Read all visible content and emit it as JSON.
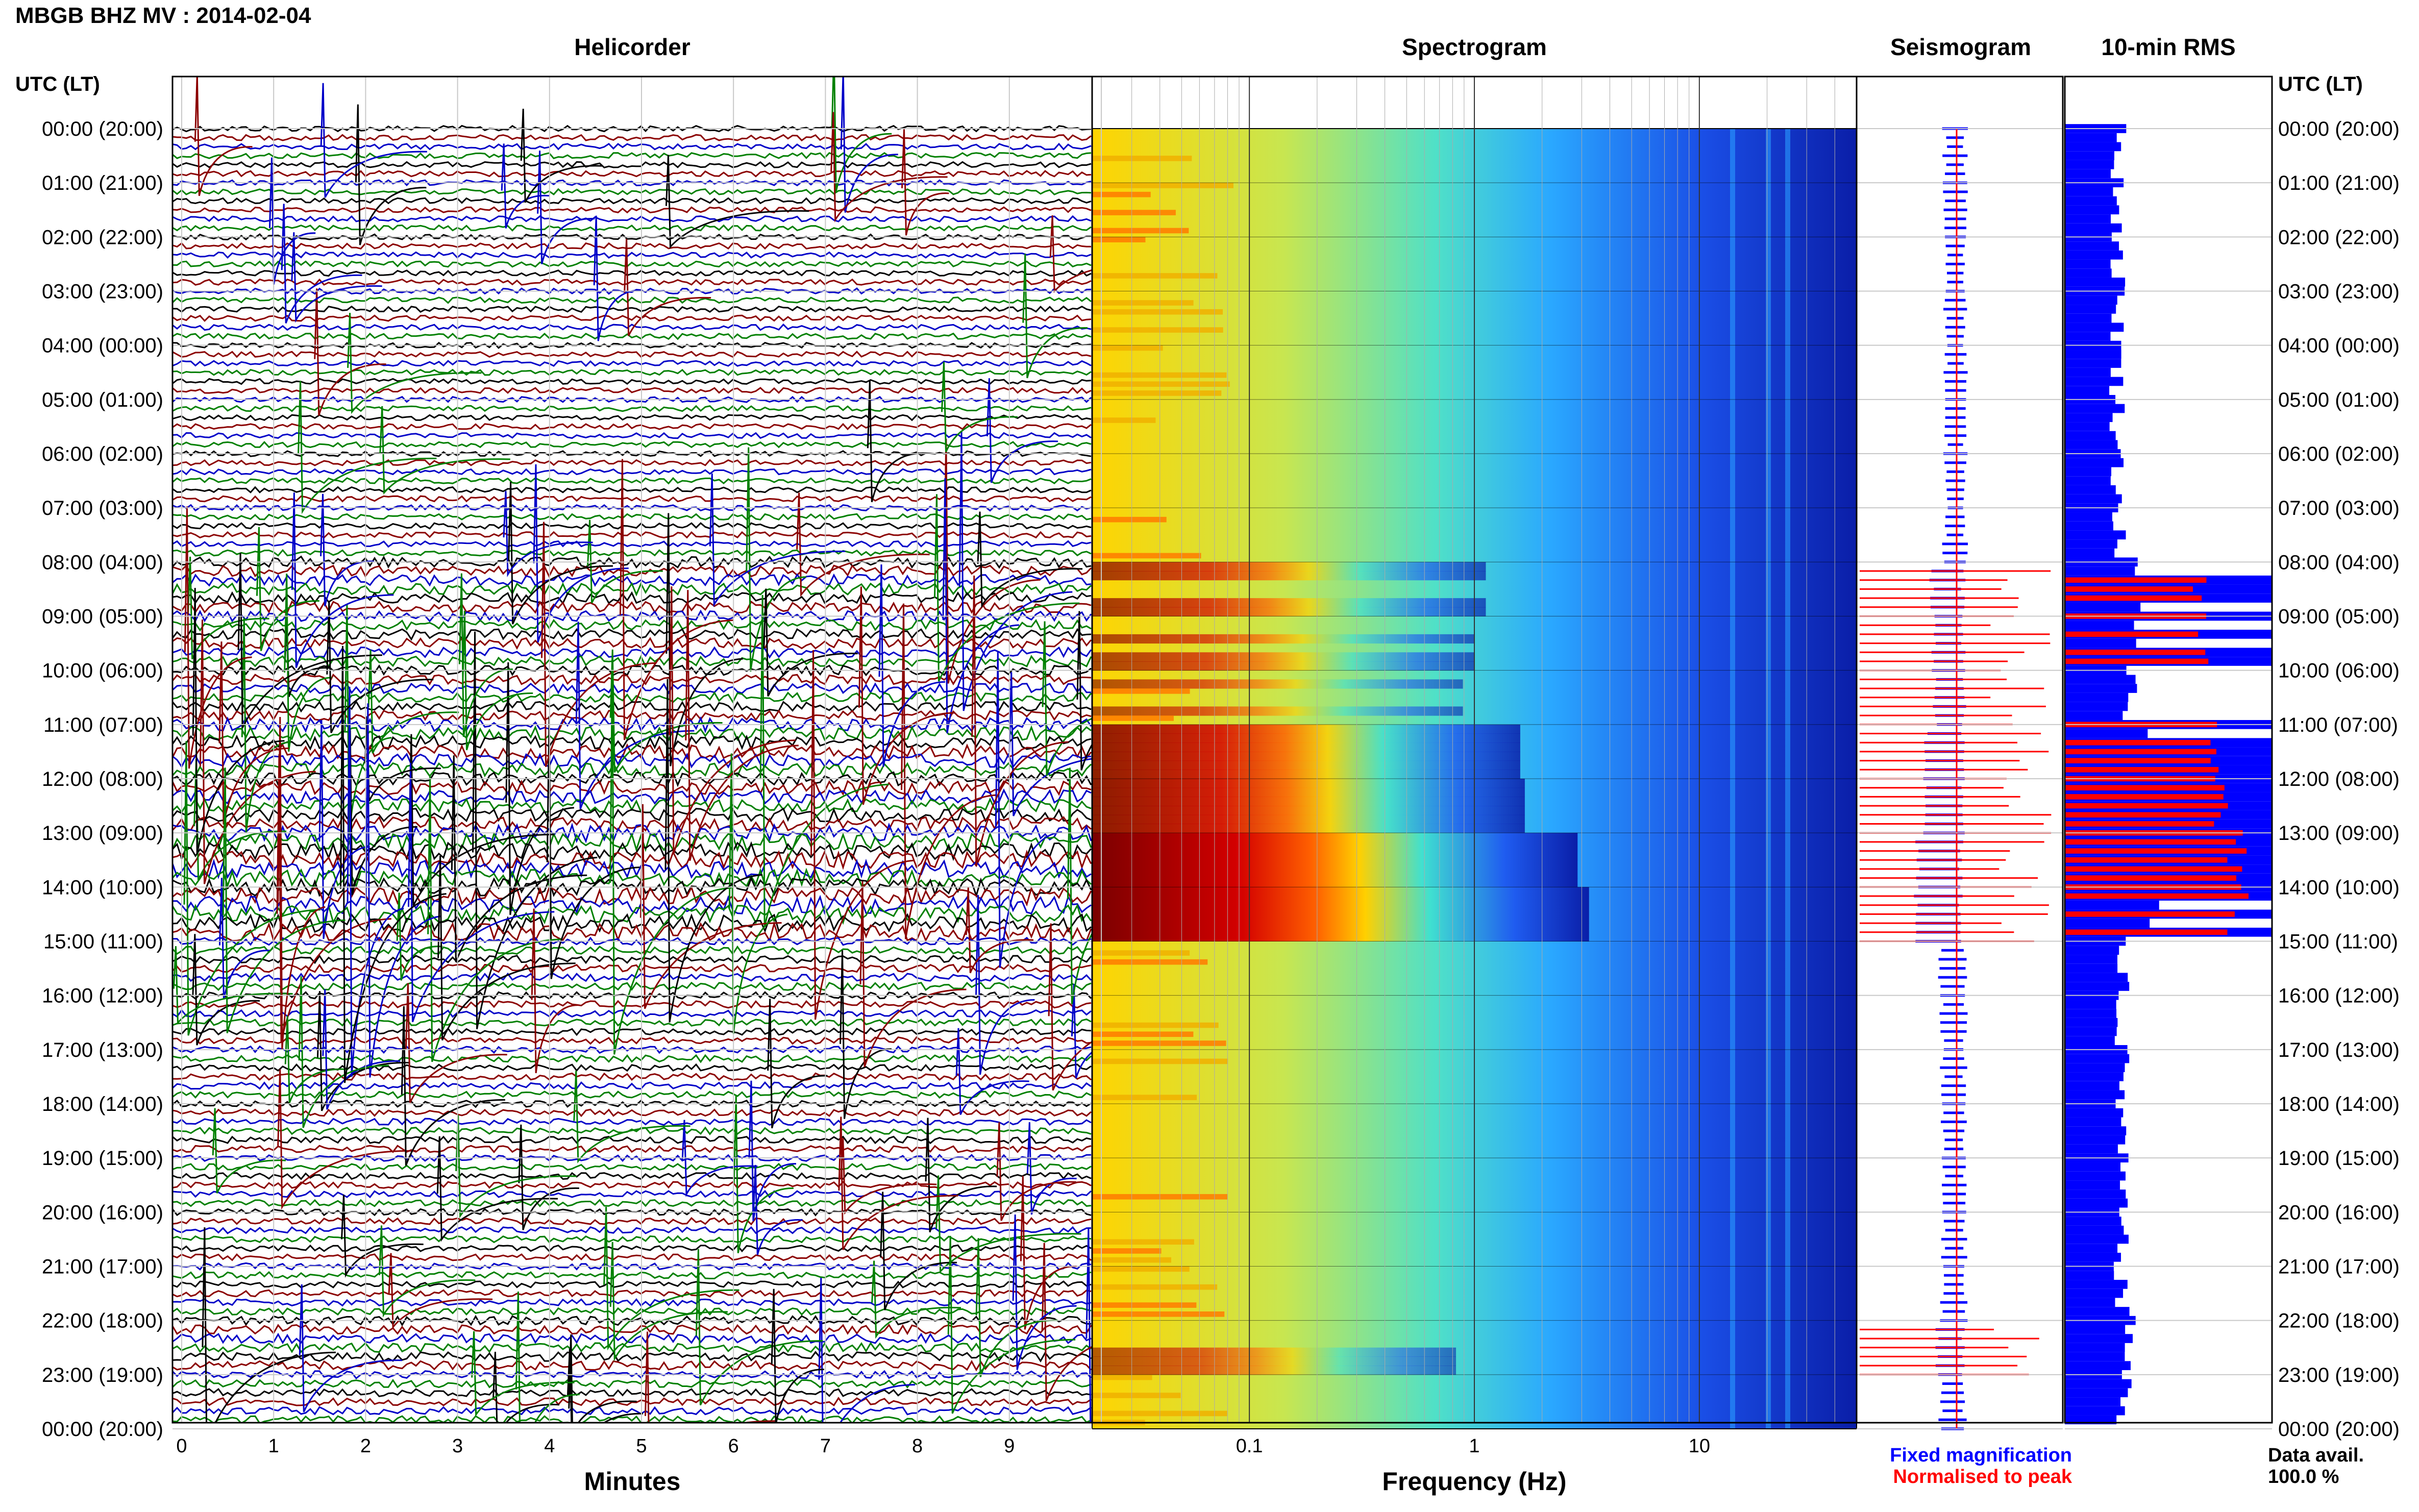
{
  "chart_data": {
    "type": "helicorder",
    "title": "MBGB BHZ MV : 2014-02-04",
    "time_axis": {
      "header": "UTC (LT)",
      "ticks": [
        "00:00 (20:00)",
        "01:00 (21:00)",
        "02:00 (22:00)",
        "03:00 (23:00)",
        "04:00 (00:00)",
        "05:00 (01:00)",
        "06:00 (02:00)",
        "07:00 (03:00)",
        "08:00 (04:00)",
        "09:00 (05:00)",
        "10:00 (06:00)",
        "11:00 (07:00)",
        "12:00 (08:00)",
        "13:00 (09:00)",
        "14:00 (10:00)",
        "15:00 (11:00)",
        "16:00 (12:00)",
        "17:00 (13:00)",
        "18:00 (14:00)",
        "19:00 (15:00)",
        "20:00 (16:00)",
        "21:00 (17:00)",
        "22:00 (18:00)",
        "23:00 (19:00)",
        "00:00 (20:00)"
      ]
    },
    "panels": {
      "helicorder": {
        "title": "Helicorder",
        "xlabel": "Minutes",
        "xticks": [
          "0",
          "1",
          "2",
          "3",
          "4",
          "5",
          "6",
          "7",
          "8",
          "9"
        ],
        "xlim": [
          0,
          10
        ],
        "trace_colors": [
          "#000000",
          "#8b0000",
          "#0000c8",
          "#008000"
        ],
        "lines_per_hour": 6
      },
      "spectrogram": {
        "title": "Spectrogram",
        "xlabel": "Frequency (Hz)",
        "xscale": "log",
        "xticks": [
          "0.1",
          "1",
          "10"
        ],
        "xlim": [
          0.02,
          50
        ],
        "colormap": "jet"
      },
      "seismogram": {
        "title": "Seismogram",
        "legend": [
          {
            "label": "Fixed magnification",
            "color": "#0000ff"
          },
          {
            "label": "Normalised to peak",
            "color": "#ff0000"
          }
        ]
      },
      "rms": {
        "title": "10-min RMS",
        "data_avail_label": "Data avail.",
        "data_avail_value": "100.0 %"
      }
    },
    "activity_by_hour": [
      0.18,
      0.16,
      0.17,
      0.17,
      0.15,
      0.16,
      0.16,
      0.18,
      0.55,
      0.5,
      0.45,
      0.7,
      0.72,
      0.95,
      1.0,
      0.3,
      0.25,
      0.25,
      0.24,
      0.22,
      0.22,
      0.24,
      0.42,
      0.3
    ],
    "colors": {
      "blue": "#0000ff",
      "red": "#ff0000",
      "text": "#000000",
      "grid": "#c8c8c8"
    }
  }
}
